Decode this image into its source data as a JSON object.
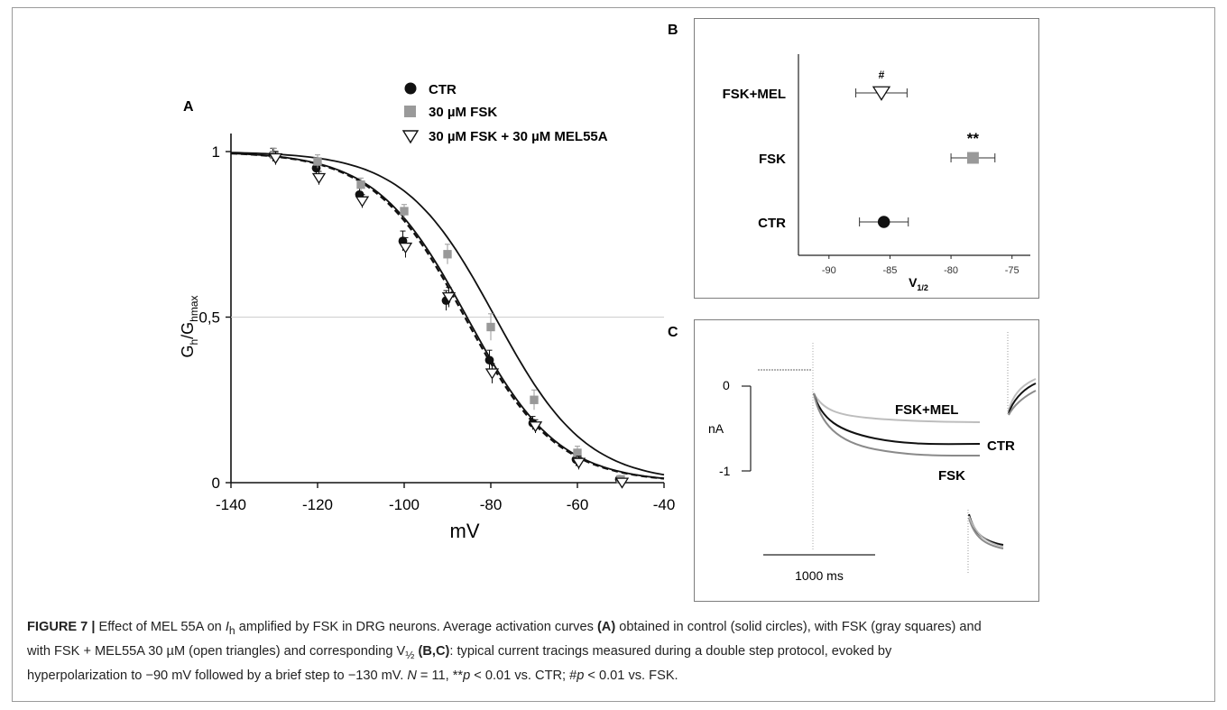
{
  "chart_data": [
    {
      "panel": "A",
      "type": "scatter",
      "xlabel": "mV",
      "ylabel_main": "G",
      "ylabel_sub1": "h",
      "ylabel_mid": "/G",
      "ylabel_sub2": "hmax",
      "xlim": [
        -140,
        -40
      ],
      "ylim": [
        0,
        1
      ],
      "xticks": [
        "-140",
        "-120",
        "-100",
        "-80",
        "-60",
        "-40"
      ],
      "yticks": [
        "0",
        "0,5",
        "1"
      ],
      "reference_line": 0.5,
      "legend_placement": "top",
      "series": [
        {
          "name": "CTR",
          "marker": "filled-circle",
          "color": "#111111",
          "x": [
            -130,
            -120,
            -110,
            -100,
            -90,
            -80,
            -70,
            -60,
            -50
          ],
          "y": [
            0.99,
            0.95,
            0.87,
            0.73,
            0.55,
            0.37,
            0.18,
            0.07,
            0.01
          ],
          "err": [
            0.02,
            0.02,
            0.02,
            0.03,
            0.03,
            0.03,
            0.02,
            0.02,
            0.01
          ]
        },
        {
          "name": "30 µM FSK",
          "marker": "gray-square",
          "color": "#9a9a9a",
          "x": [
            -130,
            -120,
            -110,
            -100,
            -90,
            -80,
            -70,
            -60,
            -50
          ],
          "y": [
            0.99,
            0.97,
            0.9,
            0.82,
            0.69,
            0.47,
            0.25,
            0.09,
            0.01
          ],
          "err": [
            0.02,
            0.02,
            0.02,
            0.02,
            0.03,
            0.04,
            0.03,
            0.02,
            0.01
          ]
        },
        {
          "name": "30 µM FSK + 30 µM MEL55A",
          "marker": "open-triangle",
          "color": "#111111",
          "x": [
            -130,
            -120,
            -110,
            -100,
            -90,
            -80,
            -70,
            -60,
            -50
          ],
          "y": [
            0.98,
            0.92,
            0.85,
            0.71,
            0.56,
            0.33,
            0.17,
            0.06,
            0.0
          ],
          "err": [
            0.02,
            0.02,
            0.02,
            0.03,
            0.03,
            0.03,
            0.02,
            0.02,
            0.01
          ]
        }
      ],
      "fits": [
        {
          "series": "CTR",
          "style": "solid",
          "v_half": -85.5,
          "k": 10.5
        },
        {
          "series": "30 µM FSK + 30 µM MEL55A",
          "style": "dashed",
          "v_half": -86.0,
          "k": 10.5
        },
        {
          "series": "30 µM FSK",
          "style": "solid",
          "v_half": -79.0,
          "k": 10.5
        }
      ]
    },
    {
      "panel": "B",
      "type": "scatter",
      "xlabel": "V1/2",
      "xlabel_main": "V",
      "xlabel_sub": "1/2",
      "xlim": [
        -92.5,
        -73.5
      ],
      "xticks": [
        "-90",
        "-85",
        "-80",
        "-75"
      ],
      "categories": [
        "FSK+MEL",
        "FSK",
        "CTR"
      ],
      "points": [
        {
          "category": "FSK+MEL",
          "value": -85.7,
          "err": 2.1,
          "marker": "open-triangle",
          "sig": "#"
        },
        {
          "category": "FSK",
          "value": -78.2,
          "err": 1.8,
          "marker": "gray-square",
          "sig": "**"
        },
        {
          "category": "CTR",
          "value": -85.5,
          "err": 2.0,
          "marker": "filled-circle",
          "sig": ""
        }
      ]
    },
    {
      "panel": "C",
      "type": "line",
      "y_scale_top": "0",
      "y_scale_unit": "nA",
      "y_scale_bottom": "-1",
      "time_scale": "1000 ms",
      "traces": [
        {
          "name": "FSK+MEL",
          "color": "#b8b8b8",
          "steady": -0.55
        },
        {
          "name": "CTR",
          "color": "#111111",
          "steady": -0.82
        },
        {
          "name": "FSK",
          "color": "#8c8c8c",
          "steady": -0.92
        }
      ]
    }
  ],
  "panel_labels": {
    "a": "A",
    "b": "B",
    "c": "C"
  },
  "caption": {
    "figure_label": "FIGURE 7 |",
    "s1": " Effect of MEL 55A on ",
    "ih_i": "I",
    "ih_sub": "h",
    "s2": " amplified by FSK in DRG neurons. Average activation curves ",
    "ref_a": "(A)",
    "s3": " obtained in control (solid circles), with FSK (gray squares) and",
    "s4": "with FSK + MEL55A 30 µM (open triangles) and corresponding V",
    "vsub": "½",
    "ref_bc": " (B,C)",
    "s5": ": typical current tracings measured during a double step protocol, evoked by",
    "s6": "hyperpolarization to −90 mV followed by a brief step to −130 mV. ",
    "n_i": "N",
    "s7": " = 11, **",
    "p1_i": "p",
    "s8": " < 0.01 vs. CTR; #",
    "p2_i": "p",
    "s9": " < 0.01 vs. FSK."
  }
}
